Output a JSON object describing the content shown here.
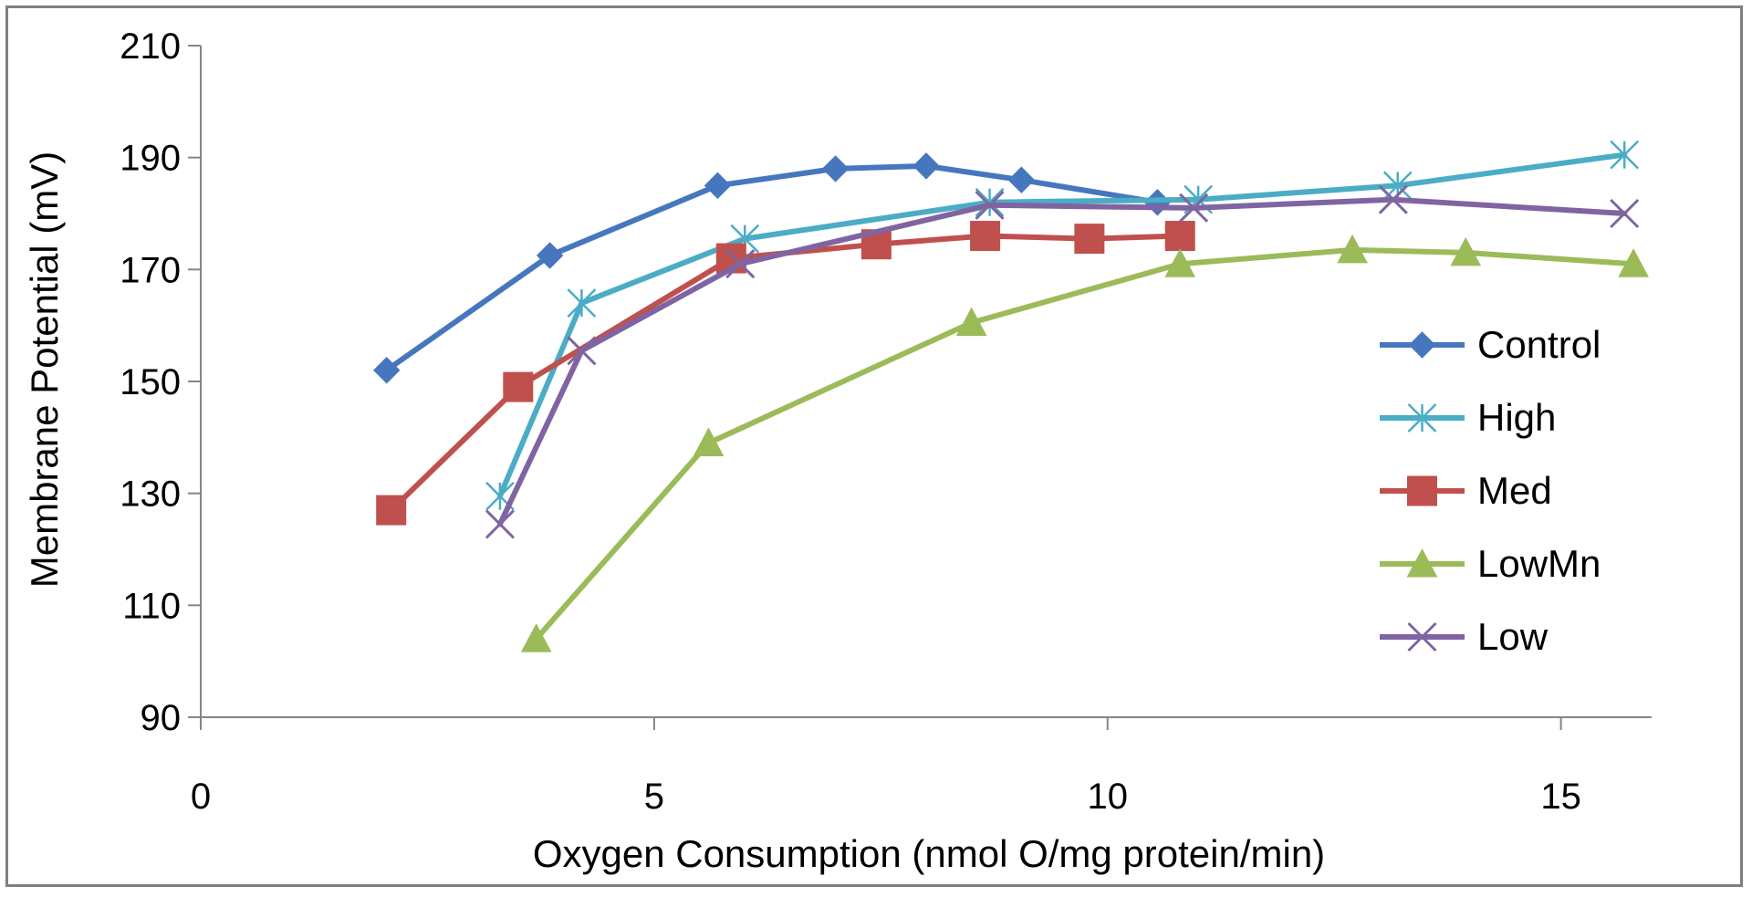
{
  "chart_data": {
    "type": "line",
    "title": "",
    "xlabel": "Oxygen Consumption (nmol O/mg protein/min)",
    "ylabel": "Membrane Potential (mV)",
    "xlim": [
      0,
      16
    ],
    "ylim": [
      90,
      210
    ],
    "xticks": [
      0,
      5,
      10,
      15
    ],
    "yticks": [
      90,
      110,
      130,
      150,
      170,
      190,
      210
    ],
    "grid": false,
    "legend_position": "right",
    "series": [
      {
        "name": "Control",
        "color": "#4677BE",
        "marker": "diamond",
        "x": [
          2.05,
          3.85,
          5.7,
          7.0,
          8.0,
          9.05,
          10.55
        ],
        "y": [
          152,
          172.5,
          185,
          188,
          188.5,
          186,
          182
        ]
      },
      {
        "name": "High",
        "color": "#4BACC6",
        "marker": "asterisk",
        "x": [
          3.3,
          4.2,
          6.0,
          8.7,
          11.0,
          13.2,
          15.7
        ],
        "y": [
          129.5,
          164,
          175.5,
          182,
          182.5,
          185,
          190.5
        ]
      },
      {
        "name": "Med",
        "color": "#C0504D",
        "marker": "square",
        "x": [
          2.1,
          3.5,
          5.85,
          7.45,
          8.65,
          9.8,
          10.8
        ],
        "y": [
          127,
          149,
          172,
          174.5,
          176,
          175.5,
          176
        ]
      },
      {
        "name": "LowMn",
        "color": "#9BBB59",
        "marker": "triangle",
        "x": [
          3.7,
          5.6,
          8.5,
          10.8,
          12.7,
          13.95,
          15.8
        ],
        "y": [
          104,
          139,
          160.5,
          171,
          173.5,
          173,
          171
        ]
      },
      {
        "name": "Low",
        "color": "#8064A2",
        "marker": "x",
        "x": [
          3.3,
          4.2,
          5.95,
          8.7,
          10.95,
          13.15,
          15.7
        ],
        "y": [
          124.5,
          155.5,
          171,
          181.5,
          181,
          182.5,
          180
        ]
      }
    ]
  }
}
